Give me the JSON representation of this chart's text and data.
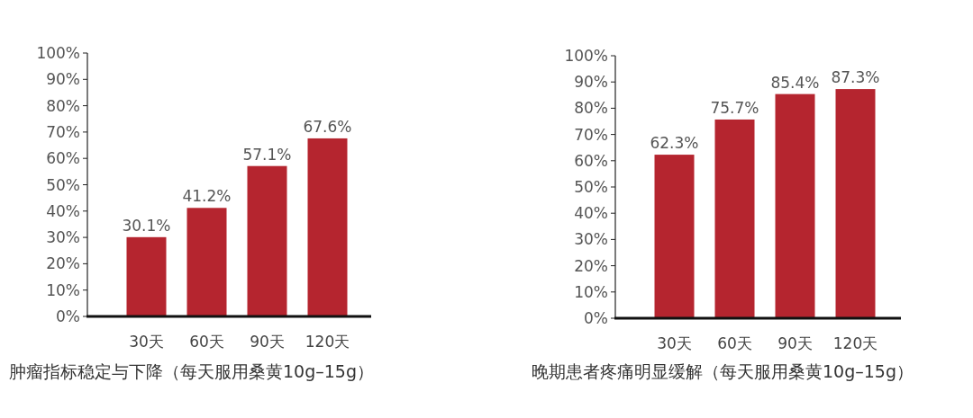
{
  "chart_data": [
    {
      "type": "bar",
      "title": "肿瘤指标稳定与下降（每天服用桑黄10g–15g）",
      "categories": [
        "30天",
        "60天",
        "90天",
        "120天"
      ],
      "values": [
        30.1,
        41.2,
        57.1,
        67.6
      ],
      "value_labels": [
        "30.1%",
        "41.2%",
        "57.1%",
        "67.6%"
      ],
      "color": "#b5252f",
      "ylim": [
        0,
        100
      ],
      "yticks": [
        {
          "value": 0,
          "label": "0%"
        },
        {
          "value": 10,
          "label": "10%"
        },
        {
          "value": 20,
          "label": "20%"
        },
        {
          "value": 30,
          "label": "30%"
        },
        {
          "value": 40,
          "label": "40%"
        },
        {
          "value": 50,
          "label": "50%"
        },
        {
          "value": 60,
          "label": "60%"
        },
        {
          "value": 70,
          "label": "70%"
        },
        {
          "value": 80,
          "label": "80%"
        },
        {
          "value": 90,
          "label": "90%"
        },
        {
          "value": 100,
          "label": "100%"
        }
      ]
    },
    {
      "type": "bar",
      "title": "晚期患者疼痛明显缓解（每天服用桑黄10g–15g）",
      "categories": [
        "30天",
        "60天",
        "90天",
        "120天"
      ],
      "values": [
        62.3,
        75.7,
        85.4,
        87.3
      ],
      "value_labels": [
        "62.3%",
        "75.7%",
        "85.4%",
        "87.3%"
      ],
      "color": "#b5252f",
      "ylim": [
        0,
        100
      ],
      "yticks": [
        {
          "value": 0,
          "label": "0%"
        },
        {
          "value": 10,
          "label": "10%"
        },
        {
          "value": 20,
          "label": "20%"
        },
        {
          "value": 30,
          "label": "30%"
        },
        {
          "value": 40,
          "label": "40%"
        },
        {
          "value": 50,
          "label": "50%"
        },
        {
          "value": 60,
          "label": "60%"
        },
        {
          "value": 70,
          "label": "70%"
        },
        {
          "value": 80,
          "label": "80%"
        },
        {
          "value": 90,
          "label": "90%"
        },
        {
          "value": 100,
          "label": "100%"
        }
      ]
    }
  ]
}
